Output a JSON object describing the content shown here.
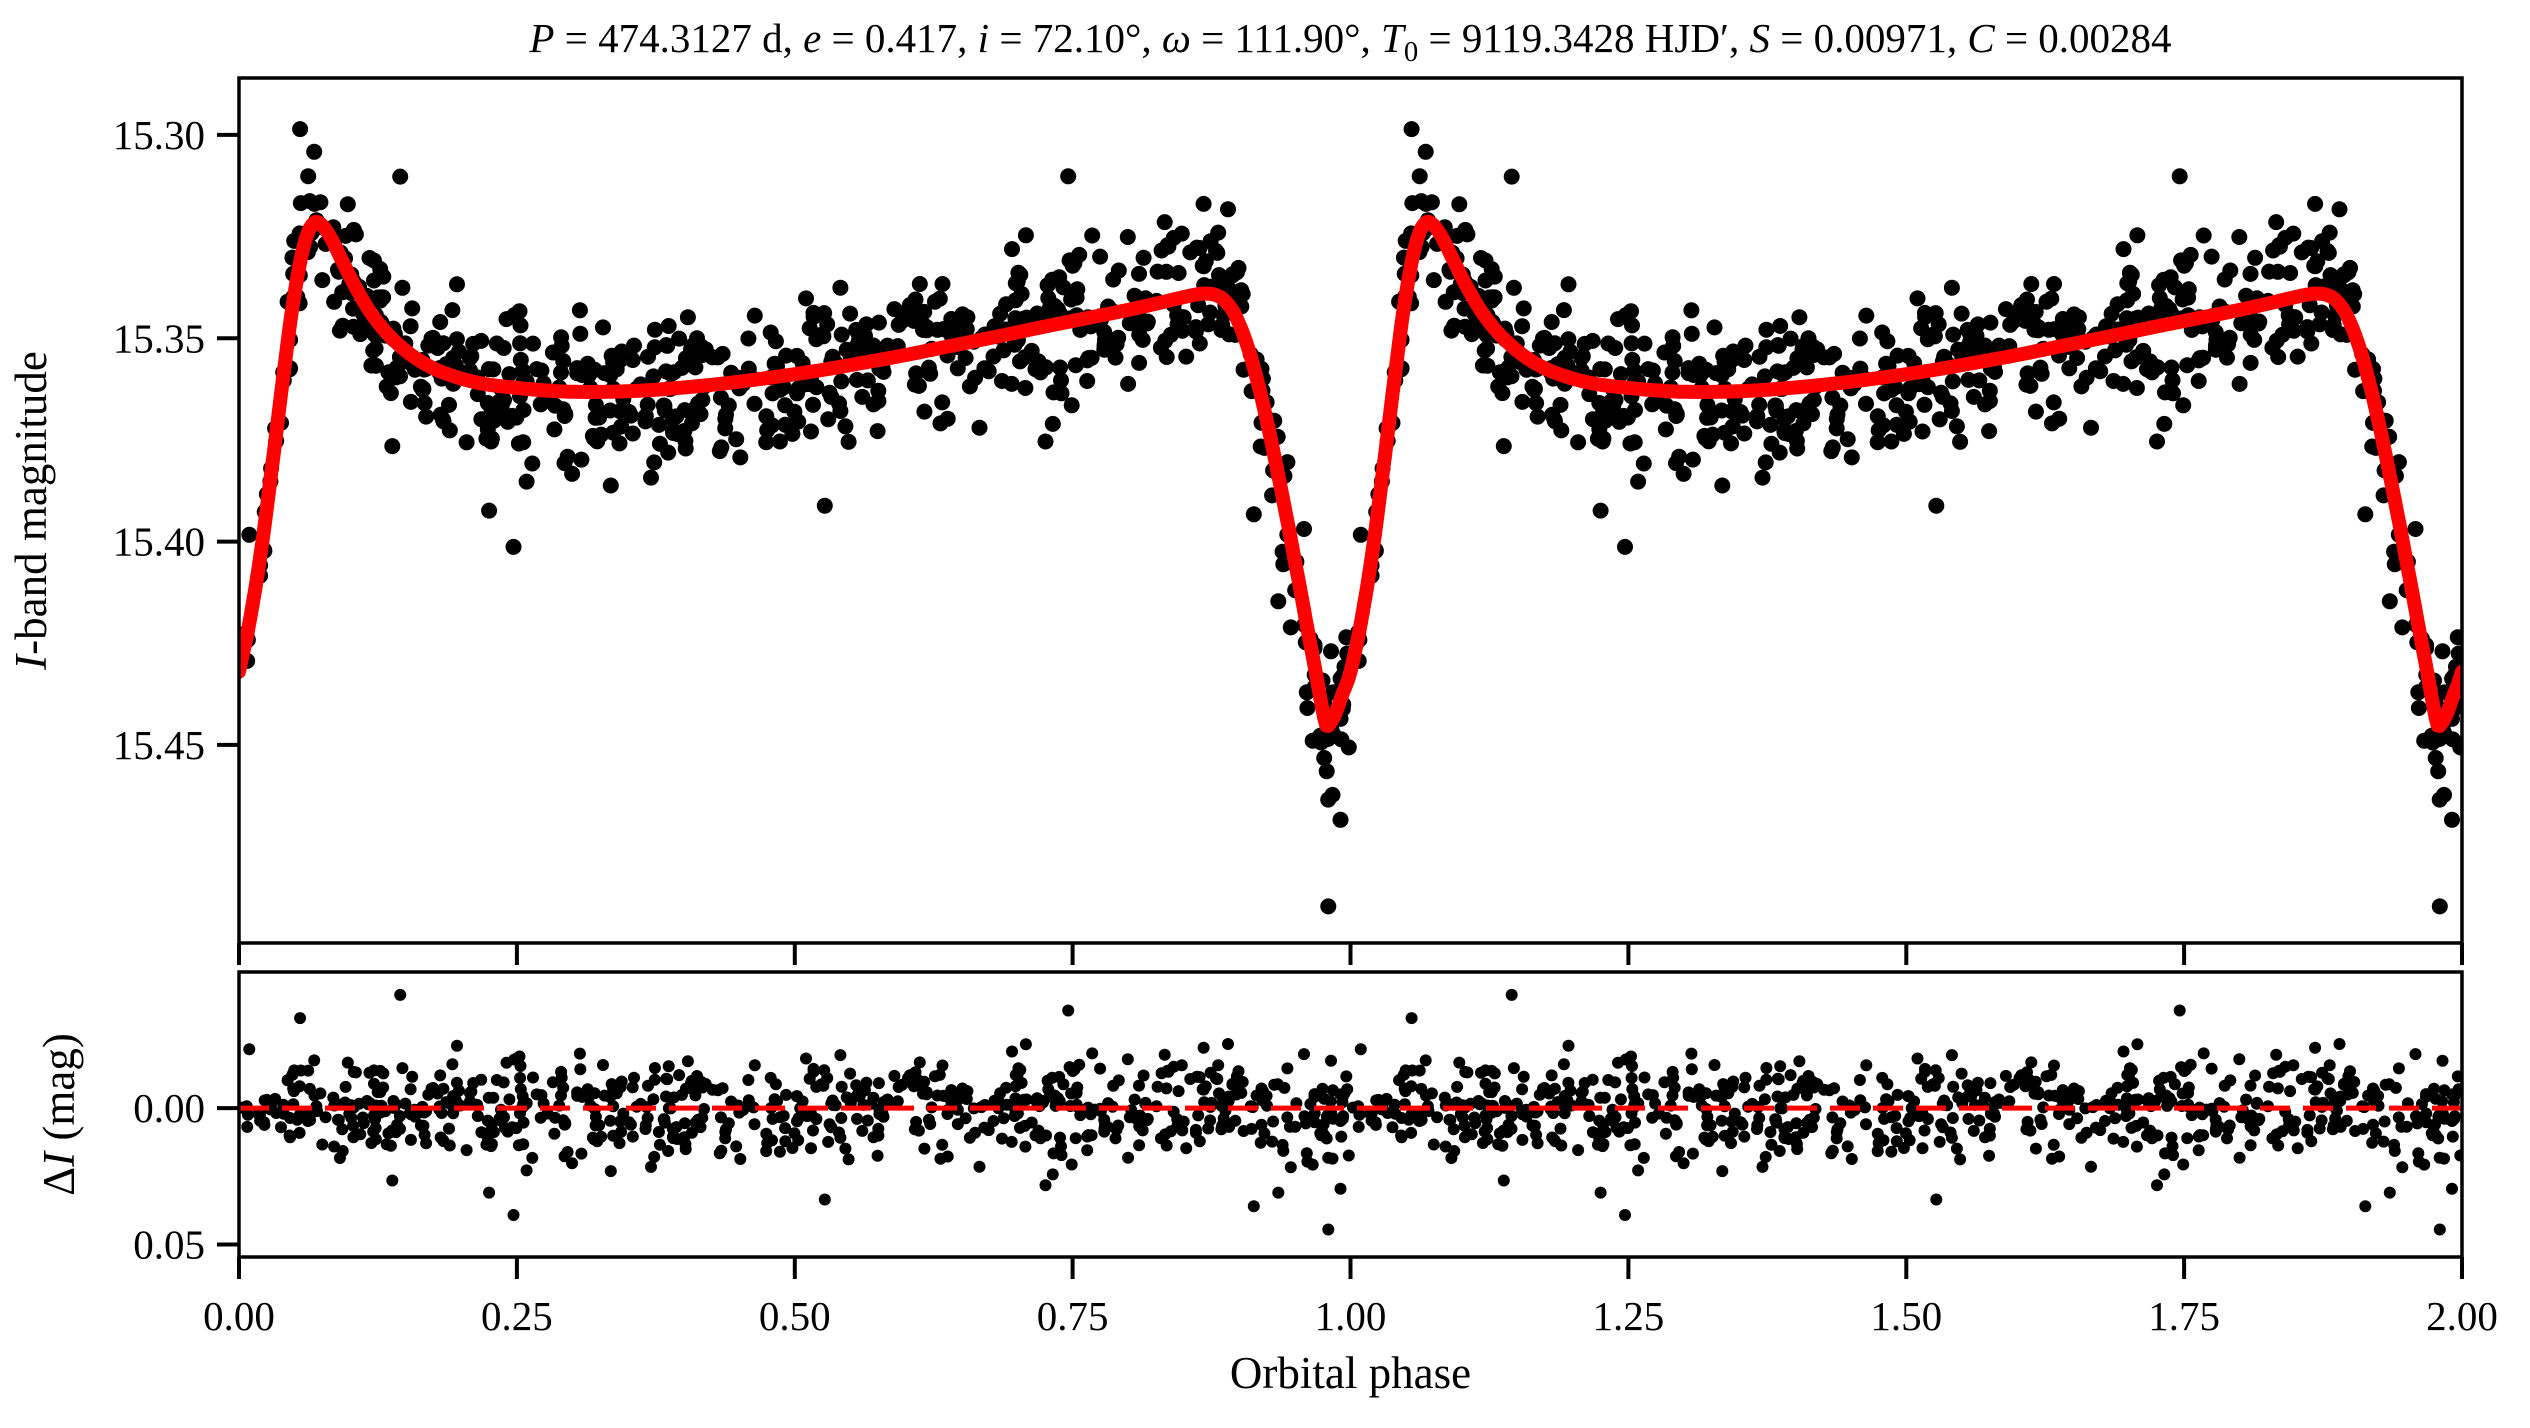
{
  "figure": {
    "background": "#ffffff",
    "title_segments": [
      {
        "t": "P",
        "italic": true
      },
      {
        "t": " = 474.3127 d, "
      },
      {
        "t": "e",
        "italic": true
      },
      {
        "t": " = 0.417, "
      },
      {
        "t": "i",
        "italic": true
      },
      {
        "t": " = 72.10°, "
      },
      {
        "t": "ω",
        "italic": true
      },
      {
        "t": " = 111.90°, "
      },
      {
        "t": "T",
        "italic": true
      },
      {
        "t": "0",
        "sub": true
      },
      {
        "t": " = 9119.3428 HJD′, "
      },
      {
        "t": "S",
        "italic": true
      },
      {
        "t": " = 0.00971, "
      },
      {
        "t": "C",
        "italic": true
      },
      {
        "t": " = 0.00284"
      }
    ]
  },
  "chart_data": {
    "type": "scatter",
    "title": "P = 474.3127 d, e = 0.417, i = 72.10°, ω = 111.90°, T0 = 9119.3428 HJD′, S = 0.00971, C = 0.00284",
    "x": {
      "label": "Orbital phase",
      "lim": [
        0.0,
        2.0
      ],
      "ticks": [
        0.0,
        0.25,
        0.5,
        0.75,
        1.0,
        1.25,
        1.5,
        1.75,
        2.0
      ],
      "tick_labels": [
        "0.00",
        "0.25",
        "0.50",
        "0.75",
        "1.00",
        "1.25",
        "1.50",
        "1.75",
        "2.00"
      ]
    },
    "panels": [
      {
        "name": "light-curve",
        "ylabel": "I-band magnitude",
        "ylabel_segments": [
          {
            "t": "I",
            "italic": true
          },
          {
            "t": "-band magnitude"
          }
        ],
        "inverted_axis": true,
        "ylim_top": 15.286,
        "ylim_bottom": 15.4987,
        "ticks": [
          15.3,
          15.35,
          15.4,
          15.45
        ],
        "tick_labels": [
          "15.30",
          "15.35",
          "15.40",
          "15.45"
        ],
        "grid": false
      },
      {
        "name": "residuals",
        "ylabel": "ΔI (mag)",
        "ylabel_segments": [
          {
            "t": "Δ"
          },
          {
            "t": "I",
            "italic": true
          },
          {
            "t": " (mag)"
          }
        ],
        "inverted_axis": true,
        "ylim_top": -0.0499,
        "ylim_bottom": 0.0546,
        "ticks": [
          0.0,
          0.05
        ],
        "tick_labels": [
          "0.00",
          "0.05"
        ],
        "zero_line": {
          "color": "#ff0000",
          "style": "dashed",
          "value": 0.0
        },
        "grid": false
      }
    ],
    "model_curve": {
      "name": "eclipsing-binary-model",
      "color": "#ff0000",
      "peak_phase": 0.068,
      "peak_mag": 15.3215,
      "eclipse_phase": 0.979,
      "eclipse_mag": 15.4455,
      "phase": [
        0.0,
        0.01,
        0.02,
        0.03,
        0.04,
        0.048,
        0.056,
        0.062,
        0.068,
        0.074,
        0.082,
        0.092,
        0.104,
        0.118,
        0.134,
        0.152,
        0.172,
        0.195,
        0.22,
        0.25,
        0.285,
        0.32,
        0.36,
        0.4,
        0.44,
        0.48,
        0.52,
        0.56,
        0.6,
        0.64,
        0.68,
        0.72,
        0.76,
        0.795,
        0.825,
        0.848,
        0.862,
        0.87,
        0.878,
        0.886,
        0.894,
        0.901,
        0.908,
        0.915,
        0.922,
        0.929,
        0.936,
        0.943,
        0.95,
        0.957,
        0.963,
        0.968,
        0.972,
        0.975,
        0.9775,
        0.979,
        0.981,
        0.984,
        0.988,
        0.992,
        0.996,
        1.0
      ],
      "mag": [
        15.432,
        15.419,
        15.402,
        15.381,
        15.359,
        15.3425,
        15.33,
        15.324,
        15.3215,
        15.322,
        15.325,
        15.3305,
        15.337,
        15.3435,
        15.349,
        15.3535,
        15.357,
        15.3595,
        15.3612,
        15.3622,
        15.363,
        15.3632,
        15.3629,
        15.3621,
        15.361,
        15.3596,
        15.358,
        15.3561,
        15.3541,
        15.3519,
        15.3497,
        15.3474,
        15.3452,
        15.3433,
        15.3415,
        15.34,
        15.3392,
        15.339,
        15.3393,
        15.3405,
        15.3432,
        15.3472,
        15.3525,
        15.3592,
        15.367,
        15.3757,
        15.385,
        15.3947,
        15.4048,
        15.415,
        15.424,
        15.431,
        15.4373,
        15.4415,
        15.4447,
        15.4455,
        15.4449,
        15.4437,
        15.4412,
        15.438,
        15.4353,
        15.432
      ]
    },
    "observations": {
      "color": "#000000",
      "marker": "circle",
      "n_unique": 720,
      "noise_sigma": 0.0097,
      "seed": 42,
      "cycles_plotted": 2,
      "outliers": [
        {
          "phase": 0.98,
          "residual": 0.0445
        },
        {
          "phase": 0.145,
          "residual": -0.0415
        },
        {
          "phase": 0.746,
          "residual": -0.0358
        },
        {
          "phase": 0.913,
          "residual": 0.036
        },
        {
          "phase": 0.527,
          "residual": 0.0335
        },
        {
          "phase": 0.247,
          "residual": 0.0392
        },
        {
          "phase": 0.225,
          "residual": 0.031
        },
        {
          "phase": 0.055,
          "residual": -0.033
        },
        {
          "phase": 0.935,
          "residual": 0.031
        }
      ]
    }
  }
}
